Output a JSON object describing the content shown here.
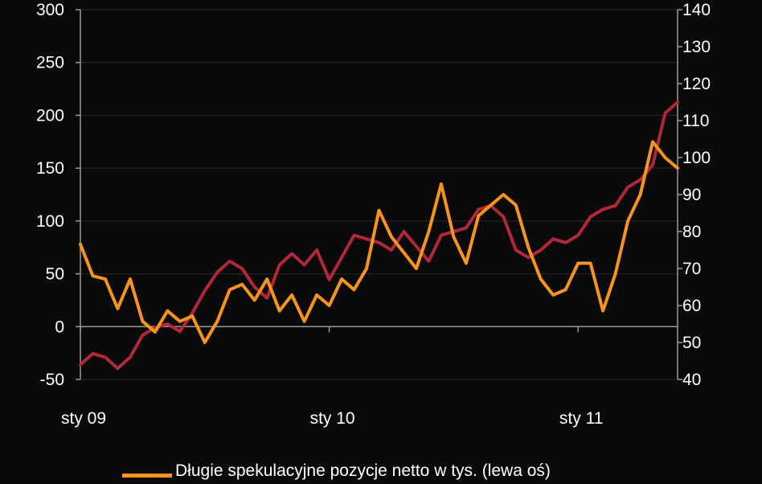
{
  "chart_data": {
    "type": "line",
    "x_tick_labels": [
      "sty 09",
      "sty 10",
      "sty 11"
    ],
    "left_axis": {
      "ylim": [
        -50,
        300
      ],
      "ticks": [
        -50,
        0,
        50,
        100,
        150,
        200,
        250,
        300
      ]
    },
    "right_axis": {
      "ylim": [
        40,
        140
      ],
      "ticks": [
        40,
        50,
        60,
        70,
        80,
        90,
        100,
        110,
        120,
        130,
        140
      ]
    },
    "grid": true,
    "legend_position": "bottom",
    "series": [
      {
        "name": "Długie spekulacyjne pozycje netto w tys. (lewa oś)",
        "axis": "left",
        "color": "#f7941d",
        "x": [
          0.0,
          0.05,
          0.1,
          0.15,
          0.2,
          0.25,
          0.3,
          0.35,
          0.4,
          0.45,
          0.5,
          0.55,
          0.6,
          0.65,
          0.7,
          0.75,
          0.8,
          0.85,
          0.9,
          0.95,
          1.0,
          1.05,
          1.1,
          1.15,
          1.2,
          1.25,
          1.3,
          1.35,
          1.4,
          1.45,
          1.5,
          1.55,
          1.6,
          1.65,
          1.7,
          1.75,
          1.8,
          1.85,
          1.9,
          1.95,
          2.0,
          2.05,
          2.1,
          2.15,
          2.2,
          2.25,
          2.3,
          2.35,
          2.4
        ],
        "values": [
          78,
          48,
          45,
          17,
          45,
          5,
          -5,
          15,
          5,
          10,
          -15,
          5,
          35,
          40,
          25,
          45,
          15,
          30,
          5,
          30,
          20,
          45,
          35,
          55,
          110,
          85,
          70,
          55,
          90,
          135,
          85,
          60,
          105,
          115,
          125,
          115,
          75,
          45,
          30,
          35,
          60,
          60,
          15,
          50,
          100,
          125,
          175,
          160,
          150
        ]
      },
      {
        "name": "",
        "axis": "right",
        "color": "#b0283a",
        "x": [
          0.0,
          0.05,
          0.1,
          0.15,
          0.2,
          0.25,
          0.3,
          0.35,
          0.4,
          0.45,
          0.5,
          0.55,
          0.6,
          0.65,
          0.7,
          0.75,
          0.8,
          0.85,
          0.9,
          0.95,
          1.0,
          1.05,
          1.1,
          1.15,
          1.2,
          1.25,
          1.3,
          1.35,
          1.4,
          1.45,
          1.5,
          1.55,
          1.6,
          1.65,
          1.7,
          1.75,
          1.8,
          1.85,
          1.9,
          1.95,
          2.0,
          2.05,
          2.1,
          2.15,
          2.2,
          2.25,
          2.3,
          2.35,
          2.4
        ],
        "values": [
          44,
          47,
          46,
          43,
          46,
          52,
          54,
          55,
          53,
          58,
          64,
          69,
          72,
          70,
          65,
          62,
          71,
          74,
          71,
          75,
          67,
          73,
          79,
          78,
          77,
          75,
          80,
          76,
          72,
          79,
          80,
          81,
          86,
          87,
          84,
          75,
          73,
          75,
          78,
          77,
          79,
          84,
          86,
          87,
          92,
          94,
          98,
          112,
          115
        ]
      }
    ]
  }
}
